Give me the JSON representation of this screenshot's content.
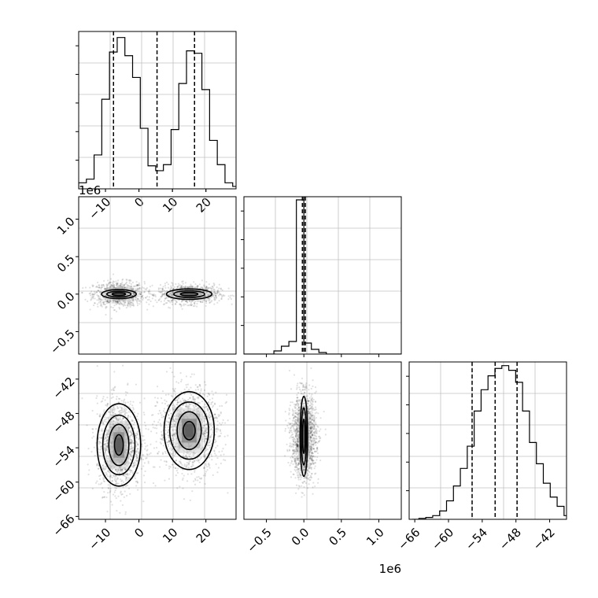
{
  "chart_data": {
    "type": "corner",
    "grid": true,
    "parameters": [
      {
        "name": "",
        "scale_text": ""
      },
      {
        "name": "",
        "scale_text": "1e6"
      },
      {
        "name": "",
        "scale_text": ""
      }
    ],
    "panels": [
      {
        "id": "hist-p0",
        "type": "histogram",
        "row": 0,
        "col": 0,
        "xlim": [
          -18,
          29
        ],
        "ylim": [
          0,
          0.13
        ],
        "bins_start": -18,
        "bin_width": 2.3,
        "counts": [
          0.005,
          0.008,
          0.028,
          0.074,
          0.113,
          0.125,
          0.11,
          0.092,
          0.05,
          0.019,
          0.015,
          0.02,
          0.049,
          0.087,
          0.114,
          0.112,
          0.082,
          0.04,
          0.02,
          0.005,
          0.002
        ],
        "quantiles": [
          -7.6,
          5.4,
          16.6
        ],
        "x_ticks": [
          -10,
          0,
          10,
          20
        ],
        "x_tick_labels": [
          "-10",
          "0",
          "10",
          "20"
        ]
      },
      {
        "id": "scatter-p0-p1",
        "type": "hist2d",
        "row": 1,
        "col": 0,
        "xlim": [
          -18,
          29
        ],
        "ylim": [
          -0.8,
          1.3
        ],
        "y_ticks": [
          -0.5,
          0.0,
          0.5,
          1.0
        ],
        "y_tick_labels": [
          "-0.5",
          "0.0",
          "0.5",
          "1.0"
        ],
        "offset_text": "1e6",
        "modes": [
          {
            "cx": -6.0,
            "cy": 0.0,
            "sx": 4.2,
            "sy": 0.09,
            "n": 900
          },
          {
            "cx": 15.0,
            "cy": 0.0,
            "sx": 5.0,
            "sy": 0.07,
            "n": 900
          }
        ],
        "contour_levels": [
          {
            "rx": [
              5.2,
              6.8
            ],
            "ry": [
              0.06,
              0.07
            ]
          },
          {
            "rx": [
              3.6,
              4.6
            ],
            "ry": [
              0.038,
              0.045
            ]
          },
          {
            "rx": [
              2.0,
              2.6
            ],
            "ry": [
              0.018,
              0.022
            ]
          }
        ]
      },
      {
        "id": "hist-p1",
        "type": "histogram",
        "row": 1,
        "col": 1,
        "xlim": [
          -0.8,
          1.3
        ],
        "ylim": [
          0,
          1.0
        ],
        "bins_start": -0.8,
        "bin_width": 0.1,
        "counts": [
          0.0,
          0.0,
          0.0,
          0.0,
          0.02,
          0.05,
          0.08,
          0.98,
          0.07,
          0.03,
          0.01,
          0.0,
          0.0,
          0.0,
          0.0,
          0.0,
          0.0,
          0.0,
          0.0,
          0.0,
          0.0
        ],
        "quantiles": [
          -0.02,
          0.0,
          0.02
        ],
        "x_ticks": [],
        "x_tick_labels": []
      },
      {
        "id": "scatter-p0-p2",
        "type": "hist2d",
        "row": 2,
        "col": 0,
        "xlim": [
          -18,
          29
        ],
        "ylim": [
          -66.5,
          -39.0
        ],
        "x_ticks": [
          -10,
          0,
          10,
          20
        ],
        "x_tick_labels": [
          "-10",
          "0",
          "10",
          "20"
        ],
        "y_ticks": [
          -66,
          -60,
          -54,
          -48,
          -42
        ],
        "y_tick_labels": [
          "-66",
          "-60",
          "-54",
          "-48",
          "-42"
        ],
        "modes": [
          {
            "cx": -6.0,
            "cy": -53.5,
            "sx": 3.6,
            "sy": 4.3,
            "n": 1400
          },
          {
            "cx": 15.0,
            "cy": -51.0,
            "sx": 5.0,
            "sy": 4.0,
            "n": 1400
          }
        ],
        "contour_levels": [
          {
            "rx": [
              6.5,
              7.5
            ],
            "ry": [
              7.2,
              6.8
            ]
          },
          {
            "rx": [
              4.8,
              5.8
            ],
            "ry": [
              5.2,
              5.0
            ]
          },
          {
            "rx": [
              3.0,
              3.6
            ],
            "ry": [
              3.6,
              3.3
            ]
          },
          {
            "rx": [
              1.3,
              1.8
            ],
            "ry": [
              1.8,
              1.6
            ]
          }
        ]
      },
      {
        "id": "scatter-p1-p2",
        "type": "hist2d",
        "row": 2,
        "col": 1,
        "xlim": [
          -0.8,
          1.3
        ],
        "ylim": [
          -66.5,
          -39.0
        ],
        "x_ticks": [
          -0.5,
          0.0,
          0.5,
          1.0
        ],
        "x_tick_labels": [
          "-0.5",
          "0.0",
          "0.5",
          "1.0"
        ],
        "offset_text": "1e6",
        "modes": [
          {
            "cx": 0.0,
            "cy": -52.0,
            "sx": 0.09,
            "sy": 4.0,
            "n": 1800
          }
        ],
        "contour_levels": [
          {
            "rx": [
              0.05,
              0.05
            ],
            "ry": [
              7.0,
              7.0
            ]
          },
          {
            "rx": [
              0.033,
              0.033
            ],
            "ry": [
              5.0,
              5.0
            ]
          },
          {
            "rx": [
              0.018,
              0.018
            ],
            "ry": [
              3.0,
              3.0
            ]
          }
        ]
      },
      {
        "id": "hist-p2",
        "type": "histogram",
        "row": 2,
        "col": 2,
        "xlim": [
          -67,
          -39.0
        ],
        "ylim": [
          0,
          0.17
        ],
        "bins_start": -66.5,
        "bin_width": 1.23,
        "counts": [
          0.0,
          0.001,
          0.002,
          0.004,
          0.009,
          0.02,
          0.036,
          0.055,
          0.079,
          0.117,
          0.14,
          0.155,
          0.163,
          0.166,
          0.161,
          0.148,
          0.117,
          0.083,
          0.06,
          0.039,
          0.024,
          0.014,
          0.004,
          0.003,
          0.001
        ],
        "quantiles": [
          -55.8,
          -51.7,
          -47.8
        ],
        "x_ticks": [
          -66,
          -60,
          -54,
          -48,
          -42
        ],
        "x_tick_labels": [
          "-66",
          "-60",
          "-54",
          "-48",
          "-42"
        ]
      }
    ]
  }
}
